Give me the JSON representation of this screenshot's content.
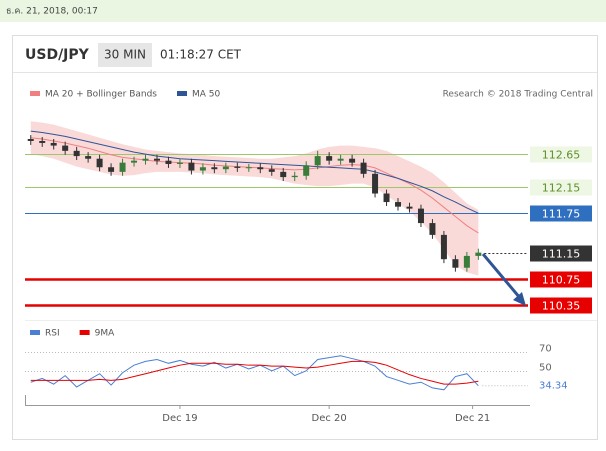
{
  "date_header": "ธ.ค. 21, 2018, 00:17",
  "header": {
    "symbol": "USD/JPY",
    "interval": "30 MIN",
    "time": "01:18:27 CET"
  },
  "credit": "Research © 2018 Trading Central",
  "chart_data": [
    {
      "type": "candlestick",
      "x": [
        0,
        1,
        2,
        3,
        4,
        5,
        6,
        7,
        8,
        9,
        10,
        11,
        12,
        13,
        14,
        15,
        16,
        17,
        18,
        19,
        20,
        21,
        22,
        23,
        24,
        25,
        26,
        27,
        28,
        29,
        30,
        31,
        32,
        33,
        34,
        35,
        36,
        37,
        38,
        39
      ],
      "open": [
        112.88,
        112.85,
        112.82,
        112.78,
        112.7,
        112.62,
        112.58,
        112.45,
        112.38,
        112.52,
        112.55,
        112.58,
        112.55,
        112.5,
        112.52,
        112.4,
        112.45,
        112.42,
        112.46,
        112.44,
        112.45,
        112.42,
        112.38,
        112.3,
        112.32,
        112.48,
        112.62,
        112.55,
        112.58,
        112.52,
        112.35,
        112.05,
        111.92,
        111.85,
        111.82,
        111.6,
        111.42,
        111.05,
        110.92,
        111.1
      ],
      "high": [
        112.94,
        112.91,
        112.88,
        112.84,
        112.76,
        112.68,
        112.64,
        112.51,
        112.58,
        112.61,
        112.64,
        112.64,
        112.61,
        112.58,
        112.58,
        112.51,
        112.51,
        112.52,
        112.52,
        112.5,
        112.51,
        112.48,
        112.44,
        112.38,
        112.54,
        112.7,
        112.68,
        112.64,
        112.64,
        112.58,
        112.41,
        112.11,
        111.98,
        111.91,
        111.88,
        111.66,
        111.48,
        111.11,
        111.16,
        111.21
      ],
      "low": [
        112.79,
        112.76,
        112.72,
        112.64,
        112.56,
        112.52,
        112.39,
        112.32,
        112.32,
        112.46,
        112.49,
        112.49,
        112.44,
        112.44,
        112.34,
        112.34,
        112.36,
        112.36,
        112.38,
        112.38,
        112.36,
        112.32,
        112.24,
        112.24,
        112.26,
        112.42,
        112.49,
        112.49,
        112.46,
        112.29,
        111.99,
        111.86,
        111.79,
        111.76,
        111.54,
        111.36,
        110.99,
        110.86,
        110.86,
        111.04
      ],
      "close": [
        112.85,
        112.82,
        112.78,
        112.7,
        112.62,
        112.58,
        112.45,
        112.38,
        112.52,
        112.55,
        112.58,
        112.55,
        112.5,
        112.52,
        112.4,
        112.45,
        112.42,
        112.46,
        112.44,
        112.45,
        112.42,
        112.38,
        112.3,
        112.32,
        112.48,
        112.62,
        112.55,
        112.58,
        112.52,
        112.35,
        112.05,
        111.92,
        111.85,
        111.82,
        111.6,
        111.42,
        111.05,
        110.92,
        111.1,
        111.15
      ],
      "up_color": "#3a7d3a",
      "down_color": "#333333",
      "series": [
        {
          "name": "MA 20 + Bollinger Bands",
          "color": "#f08080",
          "values": [
            112.9,
            112.88,
            112.85,
            112.82,
            112.78,
            112.74,
            112.69,
            112.64,
            112.6,
            112.58,
            112.56,
            112.54,
            112.53,
            112.52,
            112.51,
            112.5,
            112.48,
            112.47,
            112.46,
            112.45,
            112.44,
            112.43,
            112.42,
            112.41,
            112.42,
            112.44,
            112.46,
            112.48,
            112.49,
            112.48,
            112.44,
            112.36,
            112.28,
            112.2,
            112.1,
            111.98,
            111.84,
            111.7,
            111.56,
            111.45
          ],
          "upper": [
            113.15,
            113.13,
            113.1,
            113.05,
            113.0,
            112.95,
            112.9,
            112.85,
            112.8,
            112.76,
            112.72,
            112.7,
            112.68,
            112.66,
            112.65,
            112.64,
            112.62,
            112.61,
            112.6,
            112.59,
            112.58,
            112.58,
            112.6,
            112.62,
            112.66,
            112.72,
            112.76,
            112.78,
            112.78,
            112.76,
            112.74,
            112.7,
            112.62,
            112.54,
            112.46,
            112.36,
            112.22,
            112.06,
            111.9,
            111.8
          ],
          "lower": [
            112.65,
            112.62,
            112.58,
            112.52,
            112.46,
            112.42,
            112.38,
            112.34,
            112.32,
            112.33,
            112.36,
            112.38,
            112.38,
            112.38,
            112.37,
            112.36,
            112.34,
            112.33,
            112.32,
            112.31,
            112.3,
            112.28,
            112.24,
            112.2,
            112.18,
            112.16,
            112.16,
            112.18,
            112.2,
            112.2,
            112.14,
            112.02,
            111.9,
            111.78,
            111.62,
            111.44,
            111.2,
            110.96,
            110.85,
            110.8
          ]
        },
        {
          "name": "MA 50",
          "color": "#2f5597",
          "values": [
            113.0,
            112.98,
            112.95,
            112.92,
            112.88,
            112.84,
            112.8,
            112.76,
            112.72,
            112.68,
            112.65,
            112.62,
            112.6,
            112.58,
            112.57,
            112.56,
            112.55,
            112.54,
            112.53,
            112.52,
            112.51,
            112.5,
            112.49,
            112.48,
            112.47,
            112.46,
            112.45,
            112.44,
            112.43,
            112.42,
            112.38,
            112.33,
            112.28,
            112.22,
            112.16,
            112.09,
            112.0,
            111.92,
            111.83,
            111.75
          ]
        }
      ],
      "levels": [
        {
          "value": 112.65,
          "color": "#9cc86a",
          "label_bg": "#eef6e4",
          "label_color": "#5e8f2a",
          "width": 1,
          "dotted": false
        },
        {
          "value": 112.15,
          "color": "#9cc86a",
          "label_bg": "#eef6e4",
          "label_color": "#5e8f2a",
          "width": 1,
          "dotted": false
        },
        {
          "value": 111.75,
          "color": "#2f6fbf",
          "label_bg": "#2f6fbf",
          "label_color": "#ffffff",
          "width": 1,
          "dotted": false
        },
        {
          "value": 111.15,
          "color": "#333333",
          "label_bg": "#333333",
          "label_color": "#ffffff",
          "width": 1,
          "dotted": true
        },
        {
          "value": 110.75,
          "color": "#e60000",
          "label_bg": "#e60000",
          "label_color": "#ffffff",
          "width": 2.5,
          "dotted": false
        },
        {
          "value": 110.35,
          "color": "#e60000",
          "label_bg": "#e60000",
          "label_color": "#ffffff",
          "width": 2.5,
          "dotted": false
        }
      ],
      "xlim": [
        -0.5,
        43.5
      ],
      "ylim": [
        110.2,
        113.2
      ]
    },
    {
      "type": "line",
      "x": [
        0,
        1,
        2,
        3,
        4,
        5,
        6,
        7,
        8,
        9,
        10,
        11,
        12,
        13,
        14,
        15,
        16,
        17,
        18,
        19,
        20,
        21,
        22,
        23,
        24,
        25,
        26,
        27,
        28,
        29,
        30,
        31,
        32,
        33,
        34,
        35,
        36,
        37,
        38,
        39
      ],
      "series": [
        {
          "name": "RSI",
          "color": "#4a7fd4",
          "values": [
            38,
            42,
            36,
            45,
            33,
            40,
            47,
            35,
            48,
            56,
            60,
            62,
            58,
            61,
            57,
            55,
            59,
            53,
            57,
            52,
            56,
            50,
            55,
            45,
            50,
            62,
            64,
            66,
            63,
            60,
            55,
            44,
            40,
            36,
            38,
            32,
            30,
            44,
            47,
            34.34
          ]
        },
        {
          "name": "9MA",
          "color": "#e60000",
          "values": [
            40,
            40,
            40,
            40,
            40,
            40,
            41,
            40,
            41,
            44,
            47,
            50,
            53,
            56,
            58,
            58,
            58,
            57,
            57,
            56,
            56,
            55,
            55,
            54,
            53,
            54,
            56,
            58,
            60,
            60,
            59,
            56,
            51,
            46,
            42,
            39,
            36,
            36,
            37,
            39
          ]
        }
      ],
      "xlim": [
        -0.5,
        43.5
      ],
      "ylim": [
        15,
        90
      ],
      "yticks": [
        50,
        70
      ],
      "xticks": [
        {
          "value": 13,
          "label": "Dec 19"
        },
        {
          "value": 26,
          "label": "Dec 20"
        },
        {
          "value": 38.5,
          "label": "Dec 21"
        }
      ]
    }
  ]
}
